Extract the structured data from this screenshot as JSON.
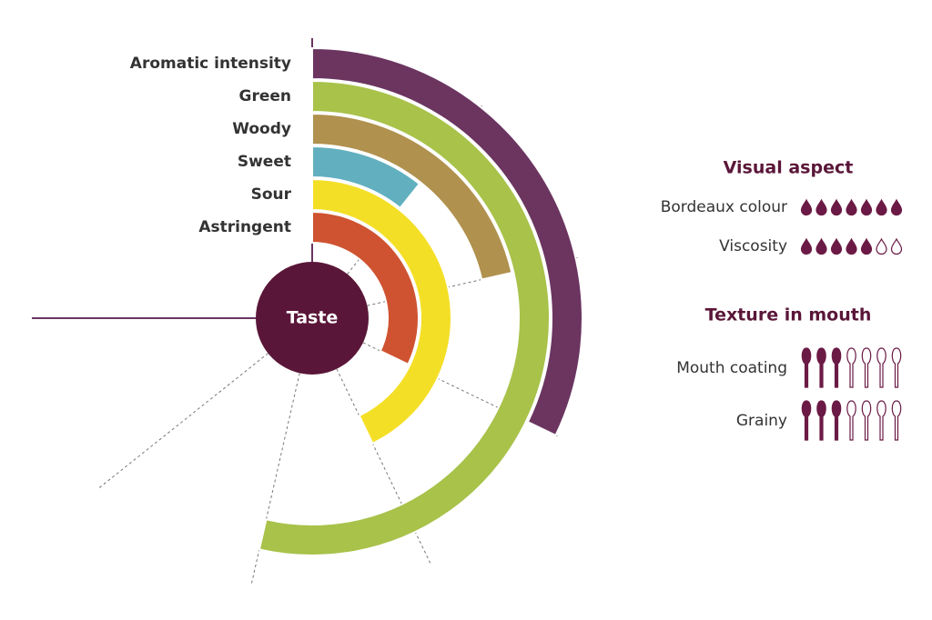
{
  "chart_data": {
    "type": "radial_bar",
    "center_label": "Taste",
    "categories": [
      "Aromatic intensity",
      "Green",
      "Woody",
      "Sweet",
      "Sour",
      "Astringent"
    ],
    "values": [
      3,
      5,
      2,
      1,
      4,
      3
    ],
    "colors": [
      "#6b3560",
      "#a8c24a",
      "#b0914e",
      "#62b0bf",
      "#f4df27",
      "#cf5330"
    ],
    "rlim": [
      0,
      7
    ],
    "rticks": [
      1,
      2,
      3,
      4,
      5,
      6
    ]
  },
  "panels": [
    {
      "title": "Visual aspect",
      "icon": "drop",
      "color": "#6b1a45",
      "rows": [
        {
          "label": "Bordeaux colour",
          "value": 7,
          "max": 7
        },
        {
          "label": "Viscosity",
          "value": 5,
          "max": 7
        }
      ]
    },
    {
      "title": "Texture in mouth",
      "icon": "spoon",
      "color": "#6b1a45",
      "rows": [
        {
          "label": "Mouth coating",
          "value": 3,
          "max": 7
        },
        {
          "label": "Grainy",
          "value": 3,
          "max": 7
        }
      ]
    }
  ]
}
